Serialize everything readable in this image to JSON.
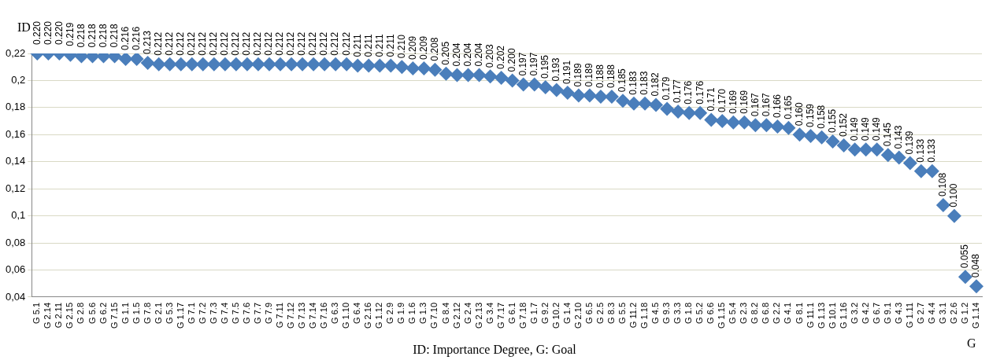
{
  "chart_data": {
    "type": "scatter",
    "xlabel": "G",
    "ylabel": "ID",
    "annotations": [
      "ID: Importance Degree, G: Goal"
    ],
    "categories": [
      "G 5.1",
      "G 2.14",
      "G 2.11",
      "G 2.15",
      "G 2.8",
      "G 5.6",
      "G 6.2",
      "G 7.15",
      "G 1.1",
      "G 1.5",
      "G 7.8",
      "G 2.1",
      "G 5.3",
      "G 1.17",
      "G 7.1",
      "G 7.2",
      "G 7.3",
      "G 7.4",
      "G 7.5",
      "G 7.6",
      "G 7.7",
      "G 7.9",
      "G 7.11",
      "G 7.12",
      "G 7.13",
      "G 7.14",
      "G 7.16",
      "G 6.3",
      "G 1.10",
      "G 6.4",
      "G 2.16",
      "G 1.12",
      "G 2.9",
      "G 1.9",
      "G 1.6",
      "G 1.3",
      "G 7.10",
      "G 8.4",
      "G 2.12",
      "G 2.4",
      "G 2.13",
      "G 3.4",
      "G 7.17",
      "G 6.1",
      "G 7.18",
      "G 1.7",
      "G 9.2",
      "G 10.2",
      "G 1.4",
      "G 2.10",
      "G 6.5",
      "G 2.5",
      "G 8.3",
      "G 5.5",
      "G 11.2",
      "G 1.18",
      "G 4.5",
      "G 9.3",
      "G 3.3",
      "G 1.8",
      "G 5.2",
      "G 6.6",
      "G 1.15",
      "G 5.4",
      "G 2.3",
      "G 8.2",
      "G 6.8",
      "G 2.2",
      "G 4.1",
      "G 8.1",
      "G 11.1",
      "G 1.13",
      "G 10.1",
      "G 1.16",
      "G 3.2",
      "G 4.2",
      "G 6.7",
      "G 9.1",
      "G 4.3",
      "G 1.11",
      "G 2.7",
      "G 4.4",
      "G 3.1",
      "G 2.6",
      "G 1.2",
      "G 1.14"
    ],
    "values": [
      0.22,
      0.22,
      0.22,
      0.219,
      0.218,
      0.218,
      0.218,
      0.218,
      0.216,
      0.216,
      0.213,
      0.212,
      0.212,
      0.212,
      0.212,
      0.212,
      0.212,
      0.212,
      0.212,
      0.212,
      0.212,
      0.212,
      0.212,
      0.212,
      0.212,
      0.212,
      0.212,
      0.212,
      0.212,
      0.211,
      0.211,
      0.211,
      0.211,
      0.21,
      0.209,
      0.209,
      0.208,
      0.205,
      0.204,
      0.204,
      0.204,
      0.203,
      0.202,
      0.2,
      0.197,
      0.197,
      0.195,
      0.193,
      0.191,
      0.189,
      0.189,
      0.188,
      0.188,
      0.185,
      0.183,
      0.183,
      0.182,
      0.179,
      0.177,
      0.176,
      0.176,
      0.171,
      0.17,
      0.169,
      0.169,
      0.167,
      0.167,
      0.166,
      0.165,
      0.16,
      0.159,
      0.158,
      0.155,
      0.152,
      0.149,
      0.149,
      0.149,
      0.145,
      0.143,
      0.139,
      0.133,
      0.133,
      0.108,
      0.1,
      0.055,
      0.048
    ],
    "value_labels": [
      "0.220",
      "0.220",
      "0.220",
      "0.219",
      "0.218",
      "0.218",
      "0.218",
      "0.218",
      "0.216",
      "0.216",
      "0.213",
      "0.212",
      "0.212",
      "0.212",
      "0.212",
      "0.212",
      "0.212",
      "0.212",
      "0.212",
      "0.212",
      "0.212",
      "0.212",
      "0.212",
      "0.212",
      "0.212",
      "0.212",
      "0.212",
      "0.212",
      "0.212",
      "0.211",
      "0.211",
      "0.211",
      "0.211",
      "0.210",
      "0.209",
      "0.209",
      "0.208",
      "0.205",
      "0.204",
      "0.204",
      "0.204",
      "0.203",
      "0.202",
      "0.200",
      "0.197",
      "0.197",
      "0.195",
      "0.193",
      "0.191",
      "0.189",
      "0.189",
      "0.188",
      "0.188",
      "0.185",
      "0.183",
      "0.183",
      "0.182",
      "0.179",
      "0.177",
      "0.176",
      "0.176",
      "0.171",
      "0.170",
      "0.169",
      "0.169",
      "0.167",
      "0.167",
      "0.166",
      "0.165",
      "0.160",
      "0.159",
      "0.158",
      "0.155",
      "0.152",
      "0.149",
      "0.149",
      "0.149",
      "0.145",
      "0.143",
      "0.139",
      "0.133",
      "0.133",
      "0.108",
      "0.100",
      "0.055",
      "0.048"
    ],
    "color": "#4a7ebb",
    "marker": "diamond",
    "grid": "y",
    "legend": false,
    "ylim": [
      0.04,
      0.22
    ],
    "yticks": [
      {
        "value": 0.04,
        "label": "0,04"
      },
      {
        "value": 0.06,
        "label": "0,06"
      },
      {
        "value": 0.08,
        "label": "0,08"
      },
      {
        "value": 0.1,
        "label": "0,1"
      },
      {
        "value": 0.12,
        "label": "0,12"
      },
      {
        "value": 0.14,
        "label": "0,14"
      },
      {
        "value": 0.16,
        "label": "0,16"
      },
      {
        "value": 0.18,
        "label": "0,18"
      },
      {
        "value": 0.2,
        "label": "0,2"
      },
      {
        "value": 0.22,
        "label": "0,22"
      }
    ]
  }
}
